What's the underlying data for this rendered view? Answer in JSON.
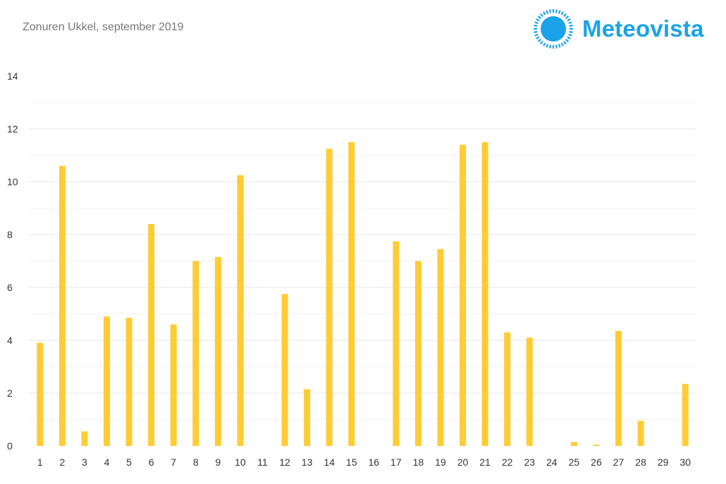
{
  "header": {
    "title": "Zonuren Ukkel, september 2019",
    "brand": "Meteovista",
    "brand_icon": "sun-icon",
    "brand_color": "#1AA3E8"
  },
  "colors": {
    "bar": "#FFCC33",
    "grid_major": "#E6E6E6",
    "grid_minor": "#F2F2F2",
    "axis_text": "#333333"
  },
  "chart_data": {
    "type": "bar",
    "title": "Zonuren Ukkel, september 2019",
    "xlabel": "",
    "ylabel": "",
    "ylim": [
      0,
      14
    ],
    "yticks": [
      0,
      2,
      4,
      6,
      8,
      10,
      12,
      14
    ],
    "grid": true,
    "categories": [
      "1",
      "2",
      "3",
      "4",
      "5",
      "6",
      "7",
      "8",
      "9",
      "10",
      "11",
      "12",
      "13",
      "14",
      "15",
      "16",
      "17",
      "18",
      "19",
      "20",
      "21",
      "22",
      "23",
      "24",
      "25",
      "26",
      "27",
      "28",
      "29",
      "30"
    ],
    "values": [
      3.9,
      10.6,
      0.55,
      4.9,
      4.85,
      8.4,
      4.6,
      7.0,
      7.15,
      10.25,
      0,
      5.75,
      2.15,
      11.25,
      11.5,
      0,
      7.75,
      7.0,
      7.45,
      11.4,
      11.5,
      4.3,
      4.1,
      0,
      0.15,
      0.05,
      4.35,
      0.95,
      0,
      2.35
    ]
  }
}
